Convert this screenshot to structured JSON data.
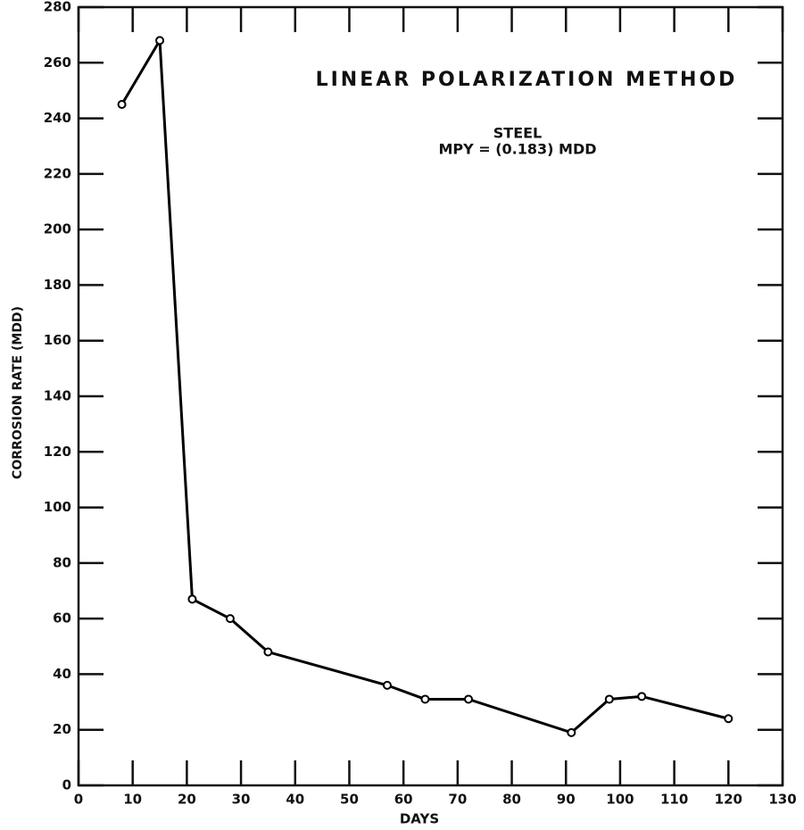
{
  "chart_data": {
    "type": "line",
    "title": "LINEAR POLARIZATION METHOD",
    "annotations": [
      "STEEL",
      "MPY = (0.183) MDD"
    ],
    "x_label": "DAYS",
    "y_label": "CORROSION RATE (MDD)",
    "x": [
      8,
      15,
      21,
      28,
      35,
      57,
      64,
      72,
      91,
      98,
      104,
      120
    ],
    "series": [
      {
        "name": "Steel",
        "color": "#000000",
        "values": [
          245,
          268,
          67,
          60,
          48,
          36,
          31,
          31,
          19,
          31,
          32,
          24
        ]
      }
    ],
    "xlim": [
      0,
      130
    ],
    "xticks": [
      0,
      10,
      20,
      30,
      40,
      50,
      60,
      70,
      80,
      90,
      100,
      110,
      120,
      130
    ],
    "ylim": [
      0,
      280
    ],
    "yticks": [
      0,
      20,
      40,
      60,
      80,
      100,
      120,
      140,
      160,
      180,
      200,
      220,
      240,
      260,
      280
    ],
    "grid": false
  }
}
